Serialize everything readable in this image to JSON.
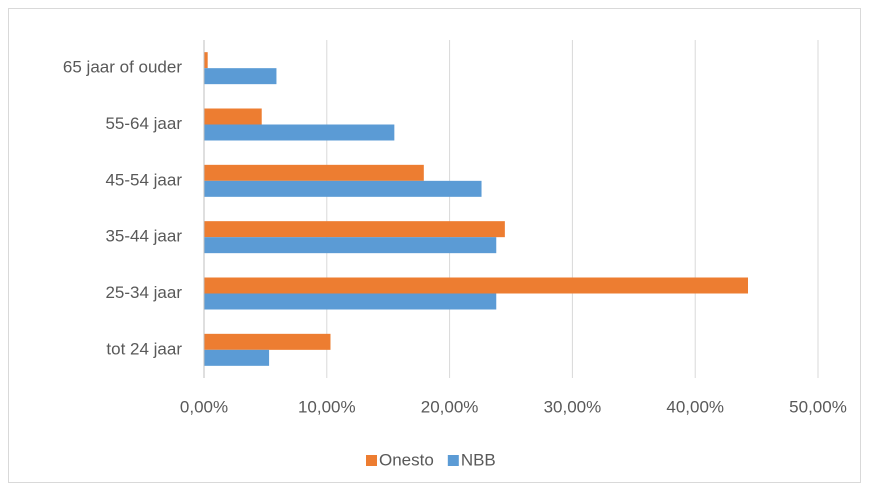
{
  "chart_data": {
    "type": "bar",
    "orientation": "horizontal",
    "categories": [
      "tot 24 jaar",
      "25-34 jaar",
      "35-44 jaar",
      "45-54 jaar",
      "55-64 jaar",
      "65 jaar of ouder"
    ],
    "series": [
      {
        "name": "Onesto",
        "color": "#ed7d31",
        "values": [
          10.3,
          44.3,
          24.5,
          17.9,
          4.7,
          0.3
        ]
      },
      {
        "name": "NBB",
        "color": "#5b9bd5",
        "values": [
          5.3,
          23.8,
          23.8,
          22.6,
          15.5,
          5.9
        ]
      }
    ],
    "xlim": [
      0,
      50
    ],
    "xticks": [
      {
        "value": 0,
        "label": "0,00%"
      },
      {
        "value": 10,
        "label": "10,00%"
      },
      {
        "value": 20,
        "label": "20,00%"
      },
      {
        "value": 30,
        "label": "30,00%"
      },
      {
        "value": 40,
        "label": "40,00%"
      },
      {
        "value": 50,
        "label": "50,00%"
      }
    ],
    "grid": true,
    "legend": "bottom"
  }
}
